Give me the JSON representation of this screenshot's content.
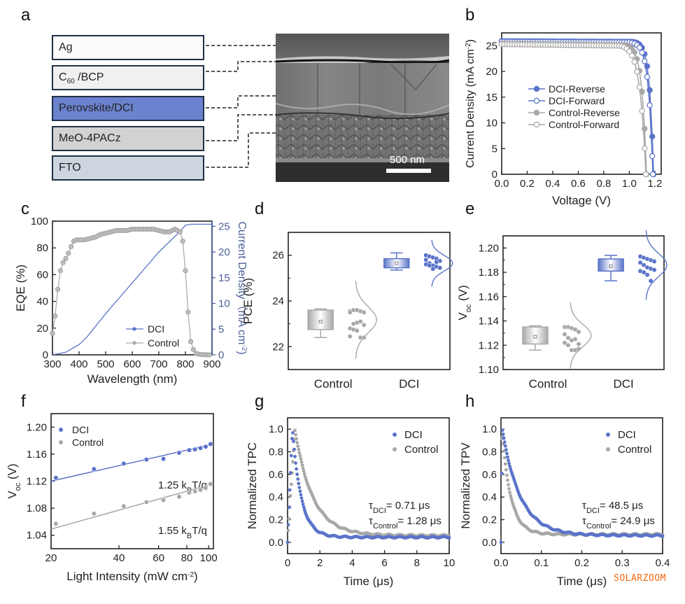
{
  "panel_letters": [
    "a",
    "b",
    "c",
    "d",
    "e",
    "f",
    "g",
    "h"
  ],
  "panel_a": {
    "layers": [
      {
        "label": "Ag",
        "fill": "#fbfbfb"
      },
      {
        "label_main": "C",
        "label_sub": "60",
        "label_rest": " /BCP",
        "fill": "#f0f0f0"
      },
      {
        "label": "Perovskite/DCI",
        "fill": "#6b82cf"
      },
      {
        "label": "MeO-4PACz",
        "fill": "#d2d2d2"
      },
      {
        "label": "FTO",
        "fill": "#cdd6e0"
      }
    ],
    "sem_scalebar": "500 nm"
  },
  "colors": {
    "dci": "#5b74c9",
    "control": "#a8a8a8",
    "axis": "#222222",
    "right_axis": "#4a5f98"
  },
  "chart_data": [
    {
      "id": "b",
      "type": "line",
      "xlabel": "Voltage (V)",
      "ylabel": "Current Density (mA cm⁻²)",
      "xlim": [
        0,
        1.25
      ],
      "ylim": [
        0,
        27.5
      ],
      "xticks": [
        "0.0",
        "0.2",
        "0.4",
        "0.6",
        "0.8",
        "1.0",
        "1.2"
      ],
      "yticks": [
        "0",
        "5",
        "10",
        "15",
        "20",
        "25"
      ],
      "legend_position": "center",
      "series": [
        {
          "name": "DCI-Reverse",
          "marker": "filled",
          "color": "dci",
          "jsc": 25.9,
          "voc": 1.19,
          "knee": 0.94,
          "sharp": 0.03
        },
        {
          "name": "DCI-Forward",
          "marker": "open",
          "color": "dci",
          "jsc": 25.8,
          "voc": 1.185,
          "knee": 0.92,
          "sharp": 0.034
        },
        {
          "name": "Control-Reverse",
          "marker": "filled",
          "color": "control",
          "jsc": 25.4,
          "voc": 1.135,
          "knee": 0.88,
          "sharp": 0.035
        },
        {
          "name": "Control-Forward",
          "marker": "open",
          "color": "control",
          "jsc": 25.3,
          "voc": 1.13,
          "knee": 0.8,
          "sharp": 0.045
        }
      ]
    },
    {
      "id": "c",
      "type": "line",
      "xlabel": "Wavelength (nm)",
      "ylabel": "EQE (%)",
      "y2label": "Current Density (mA cm⁻²)",
      "xlim": [
        300,
        900
      ],
      "ylim": [
        0,
        100
      ],
      "y2lim": [
        0,
        26
      ],
      "xticks": [
        "300",
        "400",
        "500",
        "600",
        "700",
        "800",
        "900"
      ],
      "yticks": [
        "0",
        "20",
        "40",
        "60",
        "80",
        "100"
      ],
      "y2ticks": [
        "0",
        "5",
        "10",
        "15",
        "20",
        "25"
      ],
      "legend_position": "bottom-center",
      "legend": [
        "DCI",
        "Control"
      ],
      "eqe": {
        "x": [
          300,
          310,
          320,
          330,
          340,
          350,
          360,
          370,
          380,
          390,
          400,
          420,
          440,
          460,
          480,
          500,
          520,
          540,
          560,
          580,
          600,
          620,
          640,
          660,
          680,
          700,
          720,
          740,
          760,
          770,
          780,
          790,
          800,
          810,
          820,
          830,
          840,
          850,
          860,
          880,
          900
        ],
        "y": [
          16,
          29,
          49,
          63,
          69,
          72,
          76,
          81,
          85,
          86,
          86,
          86,
          87,
          88,
          90,
          91,
          92,
          93,
          93,
          93,
          94,
          94,
          94,
          94,
          94,
          93,
          92,
          92,
          94,
          93,
          92,
          85,
          63,
          32,
          10,
          4,
          1,
          0.5,
          0.2,
          0,
          0
        ]
      },
      "jsc_integrated": {
        "x": [
          300,
          350,
          400,
          430,
          500,
          600,
          700,
          760,
          780,
          800,
          820,
          900
        ],
        "y": [
          0,
          0.5,
          2,
          3.5,
          8,
          14,
          20,
          23,
          24,
          25.2,
          25.4,
          25.4
        ]
      }
    },
    {
      "id": "d",
      "type": "box",
      "ylabel": "PCE (%)",
      "ylim": [
        21,
        27
      ],
      "yticks": [
        "22",
        "24",
        "26"
      ],
      "categories": [
        "Control",
        "DCI"
      ],
      "boxes": [
        {
          "name": "Control",
          "min": 22.4,
          "q1": 22.75,
          "mean": 23.1,
          "q3": 23.6,
          "max": 23.65,
          "points": [
            23.55,
            23.6,
            23.6,
            23.55,
            23.5,
            23.5,
            23.0,
            23.05,
            23.1,
            22.95,
            22.8,
            22.75,
            22.7,
            22.4,
            22.4,
            22.45
          ]
        },
        {
          "name": "DCI",
          "min": 25.35,
          "q1": 25.45,
          "mean": 25.65,
          "q3": 25.85,
          "max": 26.1,
          "points": [
            26.0,
            25.95,
            25.9,
            25.85,
            25.75,
            25.8,
            25.65,
            25.55,
            25.5,
            25.45,
            25.6,
            25.55,
            25.4,
            25.7
          ]
        }
      ]
    },
    {
      "id": "e",
      "type": "box",
      "ylabel": "V_oc (V)",
      "ylim": [
        1.1,
        1.21
      ],
      "yticks": [
        "1.10",
        "1.12",
        "1.14",
        "1.16",
        "1.18",
        "1.20"
      ],
      "categories": [
        "Control",
        "DCI"
      ],
      "boxes": [
        {
          "name": "Control",
          "min": 1.116,
          "q1": 1.121,
          "mean": 1.127,
          "q3": 1.135,
          "max": 1.136,
          "points": [
            1.135,
            1.135,
            1.134,
            1.133,
            1.131,
            1.129,
            1.126,
            1.124,
            1.125,
            1.121,
            1.122,
            1.12,
            1.116,
            1.116,
            1.117
          ]
        },
        {
          "name": "DCI",
          "min": 1.173,
          "q1": 1.181,
          "mean": 1.185,
          "q3": 1.191,
          "max": 1.194,
          "points": [
            1.193,
            1.192,
            1.191,
            1.19,
            1.189,
            1.188,
            1.186,
            1.184,
            1.183,
            1.182,
            1.181,
            1.18,
            1.178,
            1.173
          ]
        }
      ]
    },
    {
      "id": "f",
      "type": "scatter",
      "xlabel": "Light Intensity (mW cm⁻²)",
      "ylabel": "V_oc (V)",
      "xscale": "log",
      "xlim": [
        20,
        105
      ],
      "ylim": [
        1.02,
        1.22
      ],
      "xticks": [
        "20",
        "40",
        "60",
        "80",
        "100"
      ],
      "yticks": [
        "1.04",
        "1.08",
        "1.12",
        "1.16",
        "1.20"
      ],
      "legend_position": "top-left",
      "series": [
        {
          "name": "DCI",
          "color": "dci",
          "x": [
            21,
            31,
            42,
            53,
            63,
            74,
            82,
            87,
            92,
            97,
            102
          ],
          "y": [
            1.125,
            1.138,
            1.146,
            1.152,
            1.153,
            1.162,
            1.166,
            1.167,
            1.169,
            1.171,
            1.175
          ],
          "fit": [
            1.12,
            1.174
          ],
          "annotation": "1.25 k_BT/q"
        },
        {
          "name": "Control",
          "color": "control",
          "x": [
            21,
            31,
            42,
            53,
            63,
            74,
            82,
            87,
            92,
            97,
            102
          ],
          "y": [
            1.057,
            1.072,
            1.083,
            1.089,
            1.092,
            1.097,
            1.103,
            1.105,
            1.107,
            1.11,
            1.116
          ],
          "fit": [
            1.049,
            1.115
          ],
          "annotation": "1.55 k_BT/q"
        }
      ]
    },
    {
      "id": "g",
      "type": "scatter",
      "xlabel": "Time (μs)",
      "ylabel": "Normalized TPC",
      "xlim": [
        0,
        10
      ],
      "ylim": [
        -0.1,
        1.1
      ],
      "xticks": [
        "0",
        "2",
        "4",
        "6",
        "8",
        "10"
      ],
      "yticks": [
        "0.0",
        "0.2",
        "0.4",
        "0.6",
        "0.8",
        "1.0"
      ],
      "legend_position": "top-right",
      "annotations": [
        "τ_DCI= 0.71 μs",
        "τ_Control= 1.28 μs"
      ],
      "series": [
        {
          "name": "DCI",
          "color": "dci",
          "peak_t": 0.3,
          "tau": 0.55,
          "baseline": 0.045
        },
        {
          "name": "Control",
          "color": "control",
          "peak_t": 0.45,
          "tau": 1.1,
          "baseline": 0.06
        }
      ]
    },
    {
      "id": "h",
      "type": "scatter",
      "xlabel": "Time (μs)",
      "ylabel": "Normalized TPV",
      "xlim": [
        0,
        0.4
      ],
      "ylim": [
        -0.1,
        1.1
      ],
      "xticks": [
        "0.0",
        "0.1",
        "0.2",
        "0.3",
        "0.4"
      ],
      "yticks": [
        "0.0",
        "0.2",
        "0.4",
        "0.6",
        "0.8",
        "1.0"
      ],
      "legend_position": "top-right",
      "annotations": [
        "τ_DCI= 48.5 μs",
        "τ_Control= 24.9 μs"
      ],
      "series": [
        {
          "name": "DCI",
          "color": "dci",
          "peak_t": 0.003,
          "tau": 0.045,
          "baseline": 0.06
        },
        {
          "name": "Control",
          "color": "control",
          "peak_t": 0.002,
          "tau": 0.022,
          "baseline": 0.07
        }
      ]
    }
  ],
  "text": {
    "b_xlabel": "Voltage (V)",
    "b_ylabel": "Current Density (mA cm",
    "c_xlabel": "Wavelength (nm)",
    "c_ylabel": "EQE (%)",
    "c_y2label": "Current Density（mA cm",
    "d_ylabel": "PCE (%)",
    "e_ylabel_main": "V",
    "e_ylabel_sub": "oc",
    "e_ylabel_rest": " (V)",
    "f_xlabel": "Light Intensity (mW cm",
    "g_xlabel": "Time (μs)",
    "g_ylabel": "Normalized TPC",
    "h_xlabel": "Time (μs)",
    "h_ylabel": "Normalized TPV",
    "exp_neg2": "-2",
    "unit_close": ")"
  },
  "watermark": "SOLARZOOM"
}
